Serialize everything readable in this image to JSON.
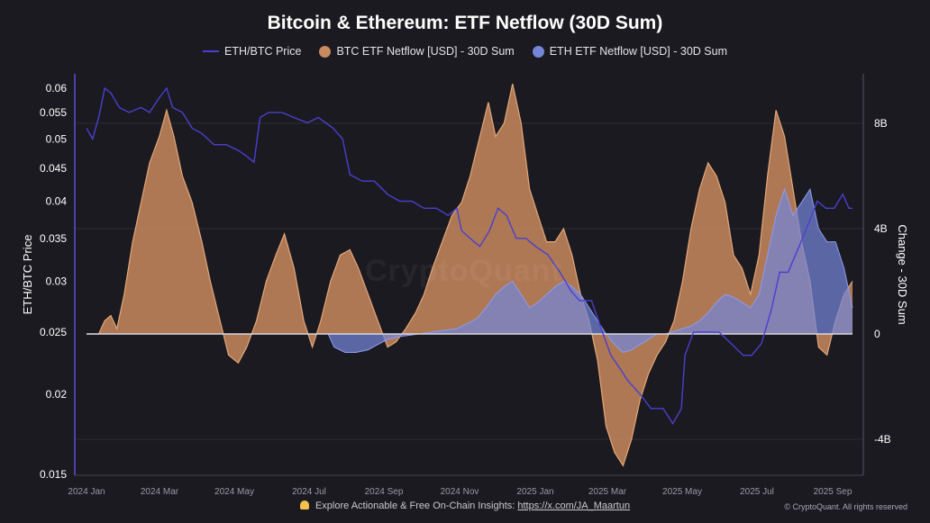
{
  "title": "Bitcoin & Ethereum: ETF Netflow (30D Sum)",
  "legend": {
    "eth_btc": "ETH/BTC Price",
    "btc": "BTC ETF Netflow [USD] - 30D Sum",
    "eth": "ETH ETF Netflow [USD] - 30D Sum"
  },
  "watermark": "CryptoQuant",
  "footer": {
    "text": "Explore Actionable & Free On-Chain Insights:",
    "link": "https://x.com/JA_Maartun",
    "credit": "© CryptoQuant. All rights reserved"
  },
  "colors": {
    "background": "#1b1a20",
    "eth_btc_line": "#4a3fd0",
    "btc_fill": "#c88a5e",
    "eth_fill": "#7585d8",
    "grid": "#2c2c33"
  },
  "chart_data": {
    "type": "area",
    "x_labels": [
      "2024 Jan",
      "2024 Mar",
      "2024 May",
      "2024 Jul",
      "2024 Sep",
      "2024 Nov",
      "2025 Jan",
      "2025 Mar",
      "2025 May",
      "2025 Jul",
      "2025 Sep"
    ],
    "x_range": [
      "2024-01-01",
      "2025-09-23"
    ],
    "y_left": {
      "label": "ETH/BTC Price",
      "scale": "log",
      "range": [
        0.015,
        0.062
      ],
      "ticks": [
        "0.06",
        "0.055",
        "0.05",
        "0.045",
        "0.04",
        "0.035",
        "0.03",
        "0.025",
        "0.02",
        "0.015"
      ]
    },
    "y_right": {
      "label": "Change - 30D Sum",
      "range_billions": [
        -5.5,
        8.5
      ],
      "ticks": [
        {
          "value": 8,
          "label": "8B"
        },
        {
          "value": 4,
          "label": "4B"
        },
        {
          "value": 0,
          "label": "0"
        },
        {
          "value": -4,
          "label": "-4B"
        }
      ]
    },
    "grid": true,
    "legend_position": "top-center",
    "series": [
      {
        "name": "ETH/BTC Price",
        "kind": "line",
        "axis": "left",
        "points": [
          [
            "2024-01-01",
            0.052
          ],
          [
            "2024-01-06",
            0.05
          ],
          [
            "2024-01-11",
            0.054
          ],
          [
            "2024-01-16",
            0.06
          ],
          [
            "2024-01-21",
            0.059
          ],
          [
            "2024-01-28",
            0.056
          ],
          [
            "2024-02-05",
            0.055
          ],
          [
            "2024-02-15",
            0.056
          ],
          [
            "2024-02-22",
            0.055
          ],
          [
            "2024-03-01",
            0.058
          ],
          [
            "2024-03-07",
            0.06
          ],
          [
            "2024-03-12",
            0.056
          ],
          [
            "2024-03-20",
            0.055
          ],
          [
            "2024-03-28",
            0.052
          ],
          [
            "2024-04-05",
            0.051
          ],
          [
            "2024-04-15",
            0.049
          ],
          [
            "2024-04-25",
            0.049
          ],
          [
            "2024-05-05",
            0.048
          ],
          [
            "2024-05-12",
            0.047
          ],
          [
            "2024-05-18",
            0.046
          ],
          [
            "2024-05-23",
            0.054
          ],
          [
            "2024-05-30",
            0.055
          ],
          [
            "2024-06-10",
            0.055
          ],
          [
            "2024-06-20",
            0.054
          ],
          [
            "2024-07-01",
            0.053
          ],
          [
            "2024-07-10",
            0.054
          ],
          [
            "2024-07-22",
            0.052
          ],
          [
            "2024-07-30",
            0.05
          ],
          [
            "2024-08-05",
            0.044
          ],
          [
            "2024-08-15",
            0.043
          ],
          [
            "2024-08-25",
            0.043
          ],
          [
            "2024-09-05",
            0.041
          ],
          [
            "2024-09-15",
            0.04
          ],
          [
            "2024-09-25",
            0.04
          ],
          [
            "2024-10-05",
            0.039
          ],
          [
            "2024-10-15",
            0.039
          ],
          [
            "2024-10-25",
            0.038
          ],
          [
            "2024-11-01",
            0.039
          ],
          [
            "2024-11-05",
            0.036
          ],
          [
            "2024-11-12",
            0.035
          ],
          [
            "2024-11-20",
            0.034
          ],
          [
            "2024-11-28",
            0.036
          ],
          [
            "2024-12-05",
            0.039
          ],
          [
            "2024-12-12",
            0.038
          ],
          [
            "2024-12-20",
            0.035
          ],
          [
            "2024-12-28",
            0.035
          ],
          [
            "2025-01-05",
            0.034
          ],
          [
            "2025-01-15",
            0.033
          ],
          [
            "2025-01-25",
            0.031
          ],
          [
            "2025-02-03",
            0.029
          ],
          [
            "2025-02-10",
            0.028
          ],
          [
            "2025-02-20",
            0.028
          ],
          [
            "2025-03-01",
            0.025
          ],
          [
            "2025-03-08",
            0.023
          ],
          [
            "2025-03-15",
            0.022
          ],
          [
            "2025-03-22",
            0.021
          ],
          [
            "2025-04-01",
            0.02
          ],
          [
            "2025-04-10",
            0.019
          ],
          [
            "2025-04-20",
            0.019
          ],
          [
            "2025-04-28",
            0.018
          ],
          [
            "2025-05-05",
            0.019
          ],
          [
            "2025-05-08",
            0.023
          ],
          [
            "2025-05-15",
            0.025
          ],
          [
            "2025-05-25",
            0.025
          ],
          [
            "2025-06-05",
            0.025
          ],
          [
            "2025-06-15",
            0.024
          ],
          [
            "2025-06-25",
            0.023
          ],
          [
            "2025-07-02",
            0.023
          ],
          [
            "2025-07-10",
            0.024
          ],
          [
            "2025-07-18",
            0.027
          ],
          [
            "2025-07-25",
            0.031
          ],
          [
            "2025-08-01",
            0.031
          ],
          [
            "2025-08-10",
            0.034
          ],
          [
            "2025-08-18",
            0.037
          ],
          [
            "2025-08-25",
            0.04
          ],
          [
            "2025-09-01",
            0.039
          ],
          [
            "2025-09-08",
            0.039
          ],
          [
            "2025-09-15",
            0.041
          ],
          [
            "2025-09-20",
            0.039
          ],
          [
            "2025-09-23",
            0.039
          ]
        ]
      },
      {
        "name": "BTC ETF Netflow [USD] - 30D Sum",
        "kind": "area",
        "axis": "right",
        "unit": "billion USD",
        "points": [
          [
            "2024-01-01",
            0
          ],
          [
            "2024-01-11",
            0
          ],
          [
            "2024-01-16",
            0.5
          ],
          [
            "2024-01-21",
            0.7
          ],
          [
            "2024-01-26",
            0.2
          ],
          [
            "2024-02-01",
            1.5
          ],
          [
            "2024-02-08",
            3.5
          ],
          [
            "2024-02-15",
            5.0
          ],
          [
            "2024-02-22",
            6.5
          ],
          [
            "2024-03-01",
            7.5
          ],
          [
            "2024-03-07",
            8.5
          ],
          [
            "2024-03-13",
            7.5
          ],
          [
            "2024-03-20",
            6.0
          ],
          [
            "2024-03-28",
            5.0
          ],
          [
            "2024-04-05",
            3.5
          ],
          [
            "2024-04-12",
            2.0
          ],
          [
            "2024-04-20",
            0.5
          ],
          [
            "2024-04-27",
            -0.8
          ],
          [
            "2024-05-05",
            -1.1
          ],
          [
            "2024-05-12",
            -0.5
          ],
          [
            "2024-05-20",
            0.5
          ],
          [
            "2024-05-28",
            2.0
          ],
          [
            "2024-06-05",
            3.0
          ],
          [
            "2024-06-12",
            3.8
          ],
          [
            "2024-06-20",
            2.5
          ],
          [
            "2024-06-28",
            0.5
          ],
          [
            "2024-07-05",
            -0.5
          ],
          [
            "2024-07-12",
            0.5
          ],
          [
            "2024-07-20",
            2.0
          ],
          [
            "2024-07-28",
            3.0
          ],
          [
            "2024-08-05",
            3.2
          ],
          [
            "2024-08-12",
            2.5
          ],
          [
            "2024-08-20",
            1.5
          ],
          [
            "2024-08-28",
            0.5
          ],
          [
            "2024-09-05",
            -0.5
          ],
          [
            "2024-09-12",
            -0.3
          ],
          [
            "2024-09-20",
            0.2
          ],
          [
            "2024-09-28",
            0.8
          ],
          [
            "2024-10-05",
            1.5
          ],
          [
            "2024-10-12",
            2.5
          ],
          [
            "2024-10-20",
            3.5
          ],
          [
            "2024-10-28",
            4.5
          ],
          [
            "2024-11-05",
            5.0
          ],
          [
            "2024-11-12",
            6.0
          ],
          [
            "2024-11-20",
            7.5
          ],
          [
            "2024-11-27",
            8.8
          ],
          [
            "2024-12-03",
            7.5
          ],
          [
            "2024-12-10",
            8.0
          ],
          [
            "2024-12-17",
            9.5
          ],
          [
            "2024-12-24",
            8.0
          ],
          [
            "2024-12-31",
            5.5
          ],
          [
            "2025-01-07",
            4.5
          ],
          [
            "2025-01-14",
            3.5
          ],
          [
            "2025-01-21",
            3.5
          ],
          [
            "2025-01-28",
            4.0
          ],
          [
            "2025-02-04",
            3.0
          ],
          [
            "2025-02-11",
            1.5
          ],
          [
            "2025-02-18",
            0.5
          ],
          [
            "2025-02-25",
            -1.0
          ],
          [
            "2025-03-04",
            -3.5
          ],
          [
            "2025-03-11",
            -4.5
          ],
          [
            "2025-03-18",
            -5.0
          ],
          [
            "2025-03-25",
            -4.0
          ],
          [
            "2025-04-01",
            -2.5
          ],
          [
            "2025-04-08",
            -1.5
          ],
          [
            "2025-04-15",
            -0.8
          ],
          [
            "2025-04-22",
            -0.3
          ],
          [
            "2025-04-29",
            0.5
          ],
          [
            "2025-05-06",
            2.0
          ],
          [
            "2025-05-13",
            4.0
          ],
          [
            "2025-05-20",
            5.5
          ],
          [
            "2025-05-27",
            6.5
          ],
          [
            "2025-06-03",
            6.0
          ],
          [
            "2025-06-10",
            5.0
          ],
          [
            "2025-06-17",
            3.0
          ],
          [
            "2025-06-24",
            2.5
          ],
          [
            "2025-07-01",
            1.5
          ],
          [
            "2025-07-08",
            3.0
          ],
          [
            "2025-07-15",
            6.0
          ],
          [
            "2025-07-22",
            8.5
          ],
          [
            "2025-07-29",
            7.5
          ],
          [
            "2025-08-05",
            5.5
          ],
          [
            "2025-08-12",
            3.5
          ],
          [
            "2025-08-19",
            2.0
          ],
          [
            "2025-08-26",
            -0.5
          ],
          [
            "2025-09-02",
            -0.8
          ],
          [
            "2025-09-09",
            0.5
          ],
          [
            "2025-09-16",
            1.5
          ],
          [
            "2025-09-23",
            2.0
          ]
        ]
      },
      {
        "name": "ETH ETF Netflow [USD] - 30D Sum",
        "kind": "area",
        "axis": "right",
        "unit": "billion USD",
        "points": [
          [
            "2024-01-01",
            0
          ],
          [
            "2024-07-18",
            0
          ],
          [
            "2024-07-23",
            -0.5
          ],
          [
            "2024-08-01",
            -0.7
          ],
          [
            "2024-08-10",
            -0.7
          ],
          [
            "2024-08-20",
            -0.6
          ],
          [
            "2024-08-28",
            -0.4
          ],
          [
            "2024-09-05",
            -0.2
          ],
          [
            "2024-09-15",
            -0.1
          ],
          [
            "2024-10-01",
            0
          ],
          [
            "2024-10-15",
            0.1
          ],
          [
            "2024-11-01",
            0.2
          ],
          [
            "2024-11-10",
            0.4
          ],
          [
            "2024-11-18",
            0.6
          ],
          [
            "2024-11-25",
            1.0
          ],
          [
            "2024-12-03",
            1.5
          ],
          [
            "2024-12-10",
            1.8
          ],
          [
            "2024-12-17",
            2.0
          ],
          [
            "2024-12-24",
            1.5
          ],
          [
            "2024-12-31",
            1.0
          ],
          [
            "2025-01-07",
            1.2
          ],
          [
            "2025-01-14",
            1.5
          ],
          [
            "2025-01-21",
            1.8
          ],
          [
            "2025-01-28",
            2.0
          ],
          [
            "2025-02-04",
            1.8
          ],
          [
            "2025-02-11",
            1.5
          ],
          [
            "2025-02-18",
            1.0
          ],
          [
            "2025-02-25",
            0.5
          ],
          [
            "2025-03-04",
            0
          ],
          [
            "2025-03-11",
            -0.4
          ],
          [
            "2025-03-18",
            -0.7
          ],
          [
            "2025-03-25",
            -0.6
          ],
          [
            "2025-04-01",
            -0.4
          ],
          [
            "2025-04-08",
            -0.2
          ],
          [
            "2025-04-15",
            0
          ],
          [
            "2025-04-22",
            0
          ],
          [
            "2025-04-29",
            0.1
          ],
          [
            "2025-05-06",
            0.2
          ],
          [
            "2025-05-13",
            0.3
          ],
          [
            "2025-05-20",
            0.5
          ],
          [
            "2025-05-27",
            0.8
          ],
          [
            "2025-06-03",
            1.2
          ],
          [
            "2025-06-10",
            1.5
          ],
          [
            "2025-06-17",
            1.4
          ],
          [
            "2025-06-24",
            1.2
          ],
          [
            "2025-07-01",
            1.0
          ],
          [
            "2025-07-08",
            1.5
          ],
          [
            "2025-07-15",
            3.0
          ],
          [
            "2025-07-22",
            4.5
          ],
          [
            "2025-07-29",
            5.5
          ],
          [
            "2025-08-05",
            4.5
          ],
          [
            "2025-08-12",
            5.0
          ],
          [
            "2025-08-19",
            5.5
          ],
          [
            "2025-08-26",
            4.0
          ],
          [
            "2025-09-02",
            3.5
          ],
          [
            "2025-09-09",
            3.5
          ],
          [
            "2025-09-16",
            2.5
          ],
          [
            "2025-09-23",
            1.0
          ]
        ]
      }
    ]
  }
}
